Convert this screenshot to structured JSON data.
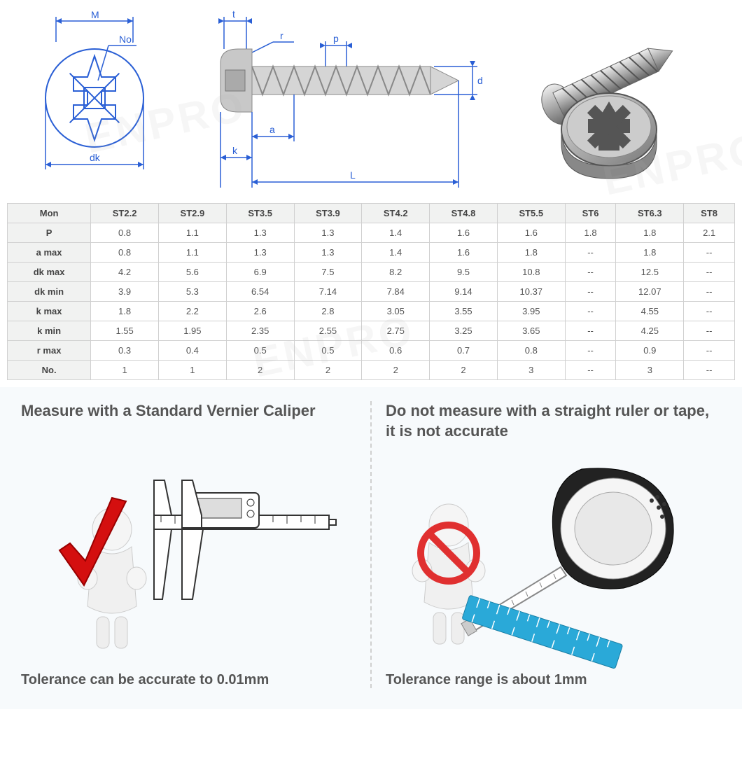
{
  "diagram": {
    "labels": {
      "M": "M",
      "No": "No.",
      "dk": "dk",
      "t": "t",
      "r": "r",
      "p": "p",
      "d": "d",
      "a": "a",
      "k": "k",
      "L": "L"
    },
    "line_color": "#2a5fd5"
  },
  "table": {
    "columns": [
      "Mon",
      "ST2.2",
      "ST2.9",
      "ST3.5",
      "ST3.9",
      "ST4.2",
      "ST4.8",
      "ST5.5",
      "ST6",
      "ST6.3",
      "ST8"
    ],
    "row_headers": [
      "P",
      "a max",
      "dk max",
      "dk min",
      "k max",
      "k min",
      "r max",
      "No."
    ],
    "rows": [
      [
        "0.8",
        "1.1",
        "1.3",
        "1.3",
        "1.4",
        "1.6",
        "1.6",
        "1.8",
        "1.8",
        "2.1"
      ],
      [
        "0.8",
        "1.1",
        "1.3",
        "1.3",
        "1.4",
        "1.6",
        "1.8",
        "--",
        "1.8",
        "--"
      ],
      [
        "4.2",
        "5.6",
        "6.9",
        "7.5",
        "8.2",
        "9.5",
        "10.8",
        "--",
        "12.5",
        "--"
      ],
      [
        "3.9",
        "5.3",
        "6.54",
        "7.14",
        "7.84",
        "9.14",
        "10.37",
        "--",
        "12.07",
        "--"
      ],
      [
        "1.8",
        "2.2",
        "2.6",
        "2.8",
        "3.05",
        "3.55",
        "3.95",
        "--",
        "4.55",
        "--"
      ],
      [
        "1.55",
        "1.95",
        "2.35",
        "2.55",
        "2.75",
        "3.25",
        "3.65",
        "--",
        "4.25",
        "--"
      ],
      [
        "0.3",
        "0.4",
        "0.5",
        "0.5",
        "0.6",
        "0.7",
        "0.8",
        "--",
        "0.9",
        "--"
      ],
      [
        "1",
        "1",
        "2",
        "2",
        "2",
        "2",
        "3",
        "--",
        "3",
        "--"
      ]
    ],
    "header_bg": "#f1f2f1",
    "border_color": "#d0d0d0",
    "font_size": 13
  },
  "info": {
    "left_title": "Measure with a Standard Vernier Caliper",
    "left_caption": "Tolerance can be accurate to 0.01mm",
    "right_title": "Do not measure with a straight ruler or tape, it is not accurate",
    "right_caption": "Tolerance range is about 1mm",
    "bg_color": "#f7fafc",
    "check_color": "#d40f0f",
    "prohibit_color": "#e03030",
    "ruler_color": "#2aa9d8",
    "title_color": "#555555",
    "title_fontsize": 22
  },
  "watermark": {
    "text": "ENPRO",
    "color": "rgba(180,180,180,0.12)"
  }
}
